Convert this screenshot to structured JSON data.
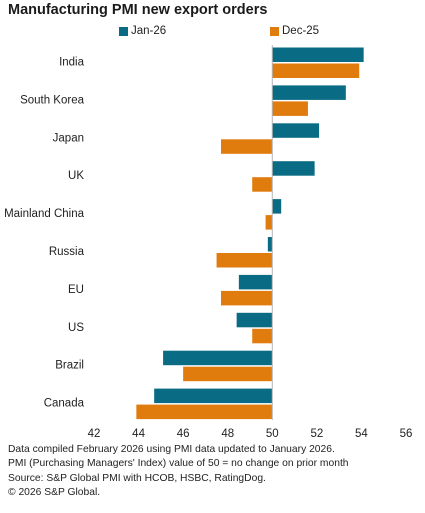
{
  "chart_data": {
    "type": "bar",
    "orientation": "horizontal",
    "title": "Manufacturing PMI new export orders",
    "categories": [
      "India",
      "South Korea",
      "Japan",
      "UK",
      "Mainland China",
      "Russia",
      "EU",
      "US",
      "Brazil",
      "Canada"
    ],
    "series": [
      {
        "name": "Jan-26",
        "color": "#0a6b84",
        "values": [
          54.1,
          53.3,
          52.1,
          51.9,
          50.4,
          49.8,
          48.5,
          48.4,
          45.1,
          44.7
        ]
      },
      {
        "name": "Dec-25",
        "color": "#e07b0e",
        "values": [
          53.9,
          51.6,
          47.7,
          49.1,
          49.7,
          47.5,
          47.7,
          49.1,
          46.0,
          43.9
        ]
      }
    ],
    "baseline": 50,
    "xlim": [
      42,
      56
    ],
    "xticks": [
      "42",
      "44",
      "46",
      "48",
      "50",
      "52",
      "54",
      "56"
    ],
    "legend_position": "top",
    "grid": false
  },
  "footer": {
    "line1": "Data compiled February 2026 using PMI data updated to January 2026.",
    "line2": "PMI (Purchasing Managers' Index) value of 50 = no change on prior month",
    "line3": "Source: S&P Global PMI with HCOB, HSBC, RatingDog.",
    "line4": "© 2026 S&P Global."
  }
}
